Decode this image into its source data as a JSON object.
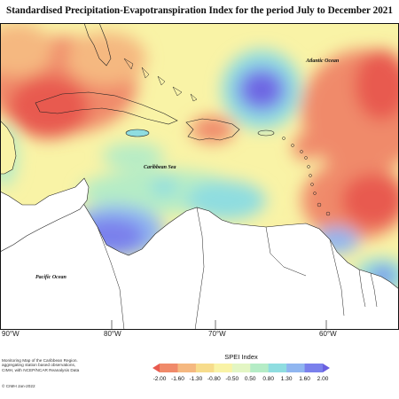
{
  "title": "Standardised Precipitation-Evapotranspiration Index for the period July to December 2021",
  "labels": {
    "atlantic": "Atlantic Ocean",
    "caribbean": "Caribbean Sea",
    "pacific": "Pacific Ocean"
  },
  "longitude_ticks": [
    "90°W",
    "80°W",
    "70°W",
    "60°W"
  ],
  "legend": {
    "title": "SPEI Index",
    "breaks": [
      "-2.00",
      "-1.60",
      "-1.30",
      "-0.80",
      "-0.50",
      "0.50",
      "0.80",
      "1.30",
      "1.60",
      "2.00"
    ],
    "colors": [
      "#e85a4f",
      "#f08a6a",
      "#f5b880",
      "#f7dc8c",
      "#f9f3a6",
      "#e3f6c4",
      "#b5ecc6",
      "#8fdde0",
      "#90b6f0",
      "#7a80ec",
      "#6a60e0"
    ]
  },
  "notes": [
    "Monitoring Map of the Caribbean Region.",
    "aggregating station based observations,",
    "CIMH, with NCEP/NCAR Reanalysis Data"
  ],
  "credit": "© CIMH Jan-2022"
}
